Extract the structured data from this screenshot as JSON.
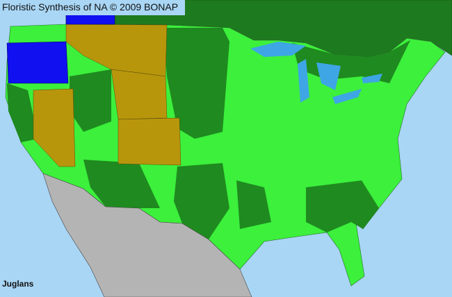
{
  "title": "Floristic Synthesis of NA © 2009 BONAP",
  "taxon": "Juglans",
  "colors": {
    "ocean": "#a9d6f5",
    "canada": "#1e7a1e",
    "present_bright_green": "#3cf03c",
    "dark_green": "#1f8a1f",
    "gold": "#b8960c",
    "blue": "#1010f0",
    "mexico": "#b4b4b4",
    "lakes": "#3ea6e4"
  }
}
